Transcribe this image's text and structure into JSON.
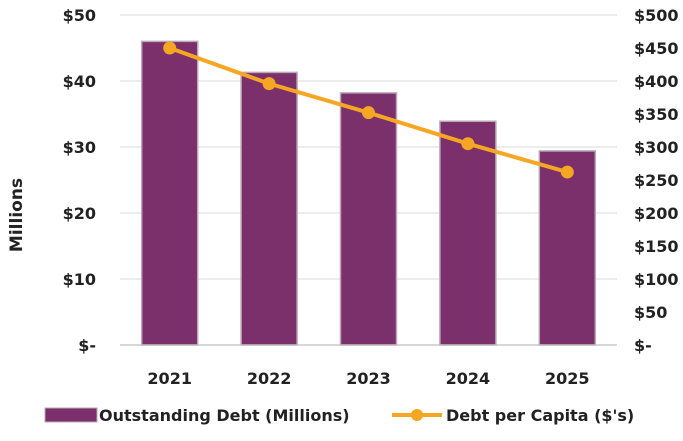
{
  "chart_data": {
    "type": "bar",
    "categories": [
      "2021",
      "2022",
      "2023",
      "2024",
      "2025"
    ],
    "series": [
      {
        "name": "Outstanding Debt (Millions)",
        "type": "bar",
        "axis": "left",
        "values": [
          46,
          41.3,
          38.2,
          33.9,
          29.4
        ],
        "color": "#7b2f6b"
      },
      {
        "name": "Debt per Capita ($'s)",
        "type": "line",
        "axis": "right",
        "values": [
          450,
          396,
          352,
          305,
          262
        ],
        "color": "#f5a623"
      }
    ],
    "ylabel": "Millions",
    "ylim": [
      0,
      50
    ],
    "y2lim": [
      0,
      500
    ],
    "y_ticks": [
      "$-",
      "$10",
      "$20",
      "$30",
      "$40",
      "$50"
    ],
    "y_tick_values": [
      0,
      10,
      20,
      30,
      40,
      50
    ],
    "y2_ticks": [
      "$-",
      "$50",
      "$100",
      "$150",
      "$200",
      "$250",
      "$300",
      "$350",
      "$400",
      "$450",
      "$500"
    ],
    "y2_tick_values": [
      0,
      50,
      100,
      150,
      200,
      250,
      300,
      350,
      400,
      450,
      500
    ],
    "grid": true,
    "legend_position": "bottom",
    "gridline_color": "#d9d9d9",
    "axis_color": "#bfbfbf",
    "bar_border_color": "#b9a8b5"
  }
}
